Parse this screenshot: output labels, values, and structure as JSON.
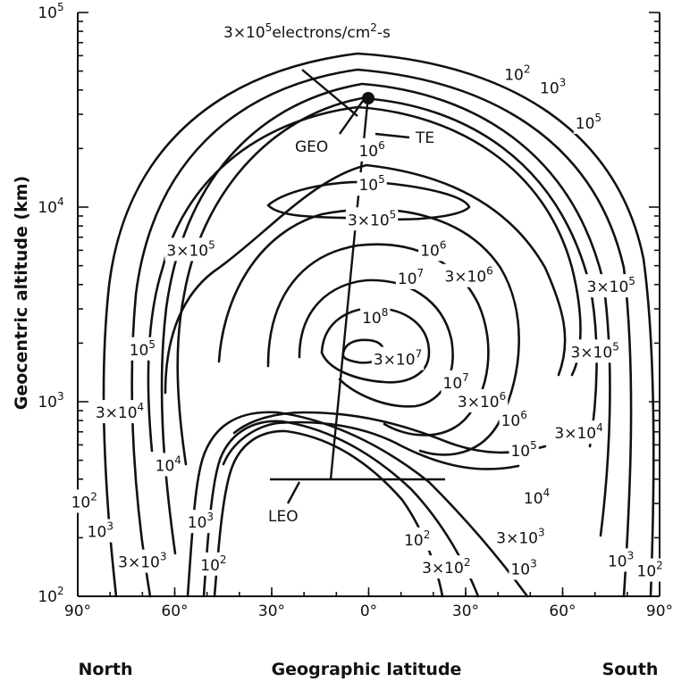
{
  "chart_data": {
    "type": "contour",
    "title": "",
    "xlabel": "Geographic latitude",
    "ylabel": "Geocentric altitude (km)",
    "x_ticks": [
      "90°",
      "60°",
      "30°",
      "0°",
      "30°",
      "60°",
      "90°"
    ],
    "x_tick_values": [
      -90,
      -60,
      -30,
      0,
      30,
      60,
      90
    ],
    "x_end_labels": {
      "left": "North",
      "right": "South"
    },
    "y_scale": "log",
    "ylim": [
      100,
      100000
    ],
    "y_ticks": [
      {
        "base": "10",
        "exp": "2",
        "value": 100
      },
      {
        "base": "10",
        "exp": "3",
        "value": 1000
      },
      {
        "base": "10",
        "exp": "4",
        "value": 10000
      },
      {
        "base": "10",
        "exp": "5",
        "value": 100000
      }
    ],
    "contour_units": "electrons/cm²-s",
    "contour_labels": [
      {
        "text": "10^2",
        "lat": 46,
        "alt": 48000
      },
      {
        "text": "10^3",
        "lat": 57,
        "alt": 41000
      },
      {
        "text": "10^5",
        "lat": 68,
        "alt": 27000
      },
      {
        "text": "10^6",
        "lat": 1,
        "alt": 19500
      },
      {
        "text": "10^5",
        "lat": 1,
        "alt": 13000
      },
      {
        "text": "3×10^5",
        "lat": 1,
        "alt": 8600
      },
      {
        "text": "10^6",
        "lat": 20,
        "alt": 6000
      },
      {
        "text": "10^7",
        "lat": 13,
        "alt": 4300
      },
      {
        "text": "3×10^6",
        "lat": 31,
        "alt": 4400
      },
      {
        "text": "10^8",
        "lat": 2,
        "alt": 2700
      },
      {
        "text": "3×10^7",
        "lat": 9,
        "alt": 1650
      },
      {
        "text": "10^7",
        "lat": 27,
        "alt": 1250
      },
      {
        "text": "3×10^6",
        "lat": 35,
        "alt": 1000
      },
      {
        "text": "10^6",
        "lat": 45,
        "alt": 800
      },
      {
        "text": "10^5",
        "lat": 48,
        "alt": 560
      },
      {
        "text": "3×10^5",
        "lat": -55,
        "alt": 6000
      },
      {
        "text": "3×10^5",
        "lat": 75,
        "alt": 3900
      },
      {
        "text": "3×10^5",
        "lat": 70,
        "alt": 1800
      },
      {
        "text": "10^5",
        "lat": -70,
        "alt": 1850
      },
      {
        "text": "3×10^4",
        "lat": -77,
        "alt": 880
      },
      {
        "text": "3×10^4",
        "lat": 65,
        "alt": 690
      },
      {
        "text": "10^4",
        "lat": -62,
        "alt": 470
      },
      {
        "text": "10^4",
        "lat": 52,
        "alt": 320
      },
      {
        "text": "10^2",
        "lat": -88,
        "alt": 305
      },
      {
        "text": "10^3",
        "lat": -83,
        "alt": 215
      },
      {
        "text": "10^3",
        "lat": -52,
        "alt": 240
      },
      {
        "text": "3×10^3",
        "lat": -70,
        "alt": 150
      },
      {
        "text": "10^2",
        "lat": -48,
        "alt": 145
      },
      {
        "text": "10^2",
        "lat": 15,
        "alt": 195
      },
      {
        "text": "3×10^3",
        "lat": 47,
        "alt": 200
      },
      {
        "text": "3×10^2",
        "lat": 24,
        "alt": 140
      },
      {
        "text": "10^3",
        "lat": 48,
        "alt": 138
      },
      {
        "text": "10^3",
        "lat": 78,
        "alt": 152
      },
      {
        "text": "10^2",
        "lat": 87,
        "alt": 135
      }
    ],
    "annotations": {
      "flux": {
        "prefix": "3×10",
        "exp": "5",
        "suffix": "electrons/cm",
        "exp2": "2",
        "tail": "-s"
      },
      "geo": "GEO",
      "te": "TE",
      "leo": "LEO"
    }
  }
}
